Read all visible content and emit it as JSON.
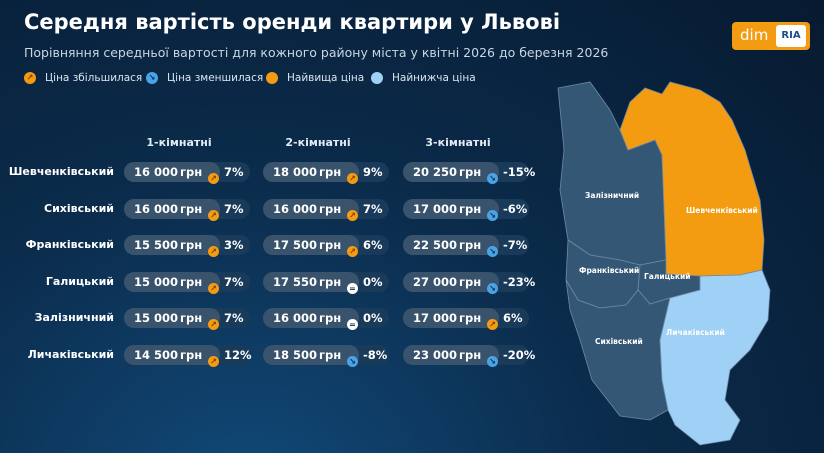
{
  "title": "Середня вартість оренди квартири у Львові",
  "subtitle": "Порівняння середньої вартості для кожного району міста у квітні 2026 до березня 2026",
  "logo": {
    "left": "dim",
    "right": "RIA"
  },
  "legend": {
    "increase": "Ціна збільшилася",
    "decrease": "Ціна зменшилася",
    "highest": "Найвища ціна",
    "lowest": "Найнижча ціна"
  },
  "colors": {
    "increase": "#f39c12",
    "decrease": "#4aa3e6",
    "highest": "#f39c12",
    "lowest": "#9fd0f5",
    "district": "#355776"
  },
  "chart_data": {
    "type": "table",
    "columns": [
      "1-кімнатні",
      "2-кімнатні",
      "3-кімнатні"
    ],
    "currency": "грн",
    "rows": [
      {
        "district": "Шевченківський",
        "cells": [
          {
            "price": "16 000",
            "change": "7%",
            "dir": "up"
          },
          {
            "price": "18 000",
            "change": "9%",
            "dir": "up"
          },
          {
            "price": "20 250",
            "change": "-15%",
            "dir": "down"
          }
        ]
      },
      {
        "district": "Сихівський",
        "cells": [
          {
            "price": "16 000",
            "change": "7%",
            "dir": "up"
          },
          {
            "price": "16 000",
            "change": "7%",
            "dir": "up"
          },
          {
            "price": "17 000",
            "change": "-6%",
            "dir": "down"
          }
        ]
      },
      {
        "district": "Франківський",
        "cells": [
          {
            "price": "15 500",
            "change": "3%",
            "dir": "up"
          },
          {
            "price": "17 500",
            "change": "6%",
            "dir": "up"
          },
          {
            "price": "22 500",
            "change": "-7%",
            "dir": "down"
          }
        ]
      },
      {
        "district": "Галицький",
        "cells": [
          {
            "price": "15 000",
            "change": "7%",
            "dir": "up"
          },
          {
            "price": "17 550",
            "change": "0%",
            "dir": "neutral"
          },
          {
            "price": "27 000",
            "change": "-23%",
            "dir": "down"
          }
        ]
      },
      {
        "district": "Залізничний",
        "cells": [
          {
            "price": "15 000",
            "change": "7%",
            "dir": "up"
          },
          {
            "price": "16 000",
            "change": "0%",
            "dir": "neutral"
          },
          {
            "price": "17 000",
            "change": "6%",
            "dir": "up"
          }
        ]
      },
      {
        "district": "Личаківський",
        "cells": [
          {
            "price": "14 500",
            "change": "12%",
            "dir": "up"
          },
          {
            "price": "18 500",
            "change": "-8%",
            "dir": "down"
          },
          {
            "price": "23 000",
            "change": "-20%",
            "dir": "down"
          }
        ]
      }
    ]
  },
  "map": {
    "districts": [
      {
        "name": "Залізничний",
        "status": "normal"
      },
      {
        "name": "Шевченківський",
        "status": "highest"
      },
      {
        "name": "Франківський",
        "status": "normal"
      },
      {
        "name": "Галицький",
        "status": "normal"
      },
      {
        "name": "Сихівський",
        "status": "normal"
      },
      {
        "name": "Личаківський",
        "status": "lowest"
      }
    ]
  }
}
